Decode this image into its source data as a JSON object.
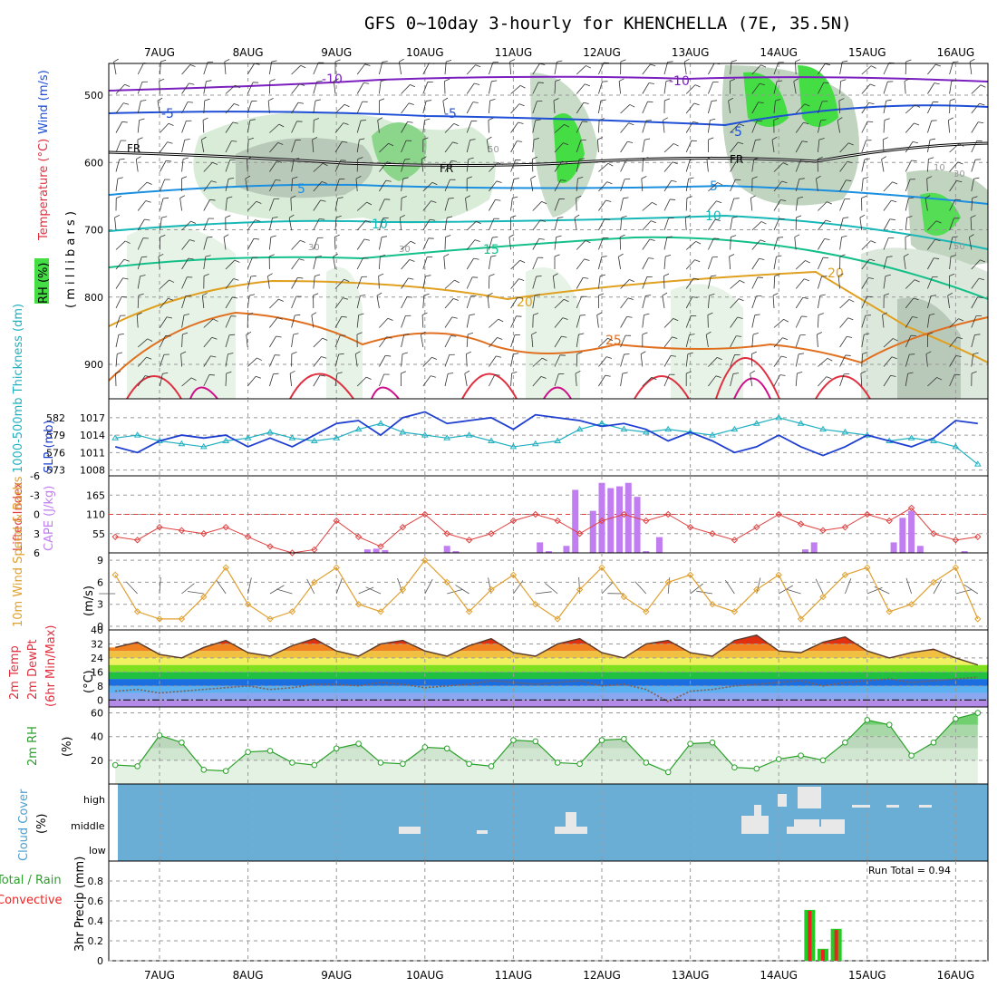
{
  "title": "GFS 0~10day 3-hourly for KHENCHELLA (7E, 35.5N)",
  "dates": [
    "7AUG",
    "8AUG",
    "9AUG",
    "10AUG",
    "11AUG",
    "12AUG",
    "13AUG",
    "14AUG",
    "15AUG",
    "16AUG"
  ],
  "colors": {
    "temp_cold": "#7b1fbf",
    "temp_neg5": "#1f4fd6",
    "freezing": "#000000",
    "temp_5": "#1b8fe0",
    "temp_10": "#18b8b8",
    "temp_15": "#14c08a",
    "temp_20": "#e0a020",
    "temp_25": "#e07020",
    "temp_30": "#e03040",
    "temp_35": "#d0108a",
    "slp": "#1f3fd0",
    "thickness": "#20b0c0",
    "cape": "#c07ef0",
    "lifted": "#e04040",
    "wind10": "#e0a030",
    "rh2m": "#2aa02a",
    "cloud": "#6aaed6",
    "cloud_cells": "#e8e8e8",
    "precip_total": "#22cc22",
    "precip_conv": "#ee2222"
  },
  "panels": {
    "upper_air": {
      "ylabel_rh": "RH (%)",
      "ylabel_temp": "Temperature (°C)",
      "ylabel_wind": "Wind (m/s)",
      "ylabel_mb": "( m i l l i b a r s )",
      "yticks": [
        "500",
        "600",
        "700",
        "800",
        "900"
      ],
      "contour_labels": [
        "-10",
        "-10",
        "-5",
        "-5",
        "-5",
        "FR",
        "FR",
        "FR",
        "5",
        "5",
        "10",
        "10",
        "15",
        "20",
        "20",
        "25",
        "30",
        "30",
        "50",
        "50",
        "30",
        "10"
      ]
    },
    "thickness_slp": {
      "ylabel_thick": "1000-500mb Thickness (dm)",
      "ylabel_slp": "SLP (mb)",
      "thick_ticks": [
        "582",
        "579",
        "576",
        "573"
      ],
      "slp_ticks": [
        "1017",
        "1014",
        "1011",
        "1008"
      ]
    },
    "stability": {
      "ylabel_li": "Lifted Index",
      "ylabel_cape": "CAPE (J/kg)",
      "li_ticks": [
        "-6",
        "-3",
        "0",
        "3",
        "6"
      ],
      "cape_ticks": [
        "165",
        "110",
        "55"
      ]
    },
    "wind10m": {
      "ylabel": "10m Wind Speed & Barbs",
      "units": "(m/s)",
      "ticks": [
        "9",
        "6",
        "3",
        "0"
      ]
    },
    "temp2m": {
      "ylabel1": "2m Temp",
      "ylabel2": "2m DewPt",
      "ylabel3": "(6hr Min/Max)",
      "units": "(°C)",
      "ticks": [
        "40",
        "32",
        "24",
        "16",
        "8",
        "0"
      ]
    },
    "rh2m": {
      "ylabel": "2m RH",
      "units": "(%)",
      "ticks": [
        "60",
        "40",
        "20"
      ]
    },
    "cloud": {
      "ylabel": "Cloud Cover",
      "units": "(%)",
      "levels": [
        "high",
        "middle",
        "low"
      ]
    },
    "precip": {
      "ylabel_total": "Total / Rain",
      "ylabel_conv": "Convective",
      "ylabel": "3hr Precip (mm)",
      "ticks": [
        "0.8",
        "0.6",
        "0.4",
        "0.2",
        "0"
      ],
      "run_total": "Run Total = 0.94"
    }
  },
  "chart_data": [
    {
      "type": "line",
      "name": "1000-500mb Thickness (dm) and SLP (mb)",
      "x_unit": "day offset from 7AUG 00Z",
      "x": [
        -0.5,
        -0.25,
        0,
        0.25,
        0.5,
        0.75,
        1,
        1.25,
        1.5,
        1.75,
        2,
        2.25,
        2.5,
        2.75,
        3,
        3.25,
        3.5,
        3.75,
        4,
        4.25,
        4.5,
        4.75,
        5,
        5.25,
        5.5,
        5.75,
        6,
        6.25,
        6.5,
        6.75,
        7,
        7.25,
        7.5,
        7.75,
        8,
        8.25,
        8.5,
        8.75,
        9,
        9.25
      ],
      "series": [
        {
          "name": "Thickness",
          "values": [
            578.5,
            579,
            578,
            577.5,
            577,
            578,
            578.5,
            579.5,
            578.5,
            578,
            578.5,
            580,
            581,
            579.5,
            579,
            578.5,
            579,
            578,
            577,
            577.5,
            578,
            580,
            581,
            580,
            579.5,
            580,
            579.5,
            579,
            580,
            581,
            582,
            581,
            580,
            579.5,
            579,
            578,
            578.5,
            578,
            577,
            574
          ]
        },
        {
          "name": "SLP",
          "values": [
            1012,
            1011,
            1013,
            1014,
            1013.5,
            1014,
            1012,
            1013.5,
            1012,
            1014,
            1016,
            1016.5,
            1014,
            1017,
            1018,
            1016,
            1016.5,
            1017,
            1015,
            1017.5,
            1017,
            1016.5,
            1015.5,
            1016,
            1015,
            1013,
            1014.5,
            1013,
            1011,
            1012,
            1014,
            1012,
            1010.5,
            1012,
            1014,
            1013,
            1012,
            1013.5,
            1016.5,
            1016
          ]
        }
      ],
      "ylim_thick": [
        572,
        584
      ],
      "ylim_slp": [
        1007,
        1019
      ]
    },
    {
      "type": "bar",
      "name": "CAPE (J/kg) and Lifted Index",
      "x": [
        2.35,
        2.45,
        2.55,
        3.25,
        3.35,
        4.3,
        4.4,
        4.6,
        4.7,
        4.9,
        5,
        5.1,
        5.2,
        5.3,
        5.4,
        5.5,
        5.65,
        7.3,
        7.4,
        8.3,
        8.4,
        8.5,
        8.6,
        9.1
      ],
      "values": [
        10,
        12,
        8,
        20,
        5,
        30,
        5,
        20,
        180,
        120,
        200,
        185,
        190,
        200,
        160,
        5,
        45,
        10,
        30,
        30,
        100,
        120,
        20,
        5
      ],
      "lifted_index_x": [
        -0.5,
        -0.25,
        0,
        0.25,
        0.5,
        0.75,
        1,
        1.25,
        1.5,
        1.75,
        2,
        2.25,
        2.5,
        2.75,
        3,
        3.25,
        3.5,
        3.75,
        4,
        4.25,
        4.5,
        4.75,
        5,
        5.25,
        5.5,
        5.75,
        6,
        6.25,
        6.5,
        6.75,
        7,
        7.25,
        7.5,
        7.75,
        8,
        8.25,
        8.5,
        8.75,
        9,
        9.25
      ],
      "lifted_index": [
        3.5,
        4,
        2,
        2.5,
        3,
        2,
        3.5,
        5,
        6,
        5.5,
        1,
        3.5,
        5,
        2,
        0,
        3,
        4,
        3,
        1,
        0,
        1,
        3,
        1,
        0,
        1,
        0,
        2,
        3,
        4,
        2,
        0,
        1.5,
        2.5,
        2,
        0,
        1,
        -1,
        3,
        4,
        3.5
      ],
      "ylim_cape": [
        0,
        220
      ],
      "ylim_li": [
        6,
        -6
      ]
    },
    {
      "type": "line",
      "name": "10m Wind Speed (m/s)",
      "x": [
        -0.5,
        -0.25,
        0,
        0.25,
        0.5,
        0.75,
        1,
        1.25,
        1.5,
        1.75,
        2,
        2.25,
        2.5,
        2.75,
        3,
        3.25,
        3.5,
        3.75,
        4,
        4.25,
        4.5,
        4.75,
        5,
        5.25,
        5.5,
        5.75,
        6,
        6.25,
        6.5,
        6.75,
        7,
        7.25,
        7.5,
        7.75,
        8,
        8.25,
        8.5,
        8.75,
        9,
        9.25
      ],
      "values": [
        7,
        2,
        1,
        1,
        4,
        8,
        3,
        1,
        2,
        6,
        8,
        3,
        2,
        5,
        9,
        6,
        2,
        5,
        7,
        3,
        1,
        5,
        8,
        4,
        2,
        6,
        7,
        3,
        2,
        5,
        7,
        1,
        4,
        7,
        8,
        2,
        3,
        6,
        8,
        1
      ],
      "ylim": [
        0,
        10
      ]
    },
    {
      "type": "line",
      "name": "2m Temp and DewPt (°C)",
      "x": [
        -0.5,
        -0.25,
        0,
        0.25,
        0.5,
        0.75,
        1,
        1.25,
        1.5,
        1.75,
        2,
        2.25,
        2.5,
        2.75,
        3,
        3.25,
        3.5,
        3.75,
        4,
        4.25,
        4.5,
        4.75,
        5,
        5.25,
        5.5,
        5.75,
        6,
        6.25,
        6.5,
        6.75,
        7,
        7.25,
        7.5,
        7.75,
        8,
        8.25,
        8.5,
        8.75,
        9,
        9.25
      ],
      "series": [
        {
          "name": "Temp",
          "values": [
            30,
            33,
            26,
            24,
            30,
            34,
            27,
            25,
            31,
            35,
            28,
            25,
            32,
            34,
            28,
            25,
            31,
            35,
            27,
            25,
            32,
            35,
            27,
            24,
            32,
            34,
            27,
            25,
            34,
            37,
            28,
            27,
            33,
            36,
            28,
            24,
            27,
            29,
            24,
            20
          ]
        },
        {
          "name": "DewPt",
          "values": [
            5,
            6,
            4,
            5,
            6,
            7,
            8,
            6,
            7,
            9,
            9,
            8,
            10,
            9,
            7,
            8,
            9,
            11,
            10,
            9,
            10,
            11,
            8,
            9,
            6,
            -1,
            5,
            6,
            8,
            9,
            10,
            11,
            8,
            10,
            11,
            12,
            10,
            11,
            12,
            13
          ]
        }
      ],
      "ylim": [
        -4,
        40
      ]
    },
    {
      "type": "area",
      "name": "2m RH (%)",
      "x": [
        -0.5,
        -0.25,
        0,
        0.25,
        0.5,
        0.75,
        1,
        1.25,
        1.5,
        1.75,
        2,
        2.25,
        2.5,
        2.75,
        3,
        3.25,
        3.5,
        3.75,
        4,
        4.25,
        4.5,
        4.75,
        5,
        5.25,
        5.5,
        5.75,
        6,
        6.25,
        6.5,
        6.75,
        7,
        7.25,
        7.5,
        7.75,
        8,
        8.25,
        8.5,
        8.75,
        9,
        9.25
      ],
      "values": [
        16,
        15,
        41,
        35,
        12,
        11,
        27,
        28,
        18,
        16,
        30,
        34,
        18,
        17,
        31,
        30,
        17,
        15,
        37,
        36,
        18,
        17,
        37,
        38,
        18,
        10,
        34,
        35,
        14,
        13,
        21,
        24,
        20,
        35,
        54,
        50,
        24,
        35,
        55,
        60
      ],
      "ylim": [
        0,
        65
      ]
    },
    {
      "type": "bar",
      "name": "3hr Precip (mm)",
      "x": [
        7.35,
        7.5,
        7.65
      ],
      "series": [
        {
          "name": "Total / Rain",
          "values": [
            0.51,
            0.12,
            0.32
          ]
        },
        {
          "name": "Convective",
          "values": [
            0.5,
            0.11,
            0.31
          ]
        }
      ],
      "ylim": [
        0,
        1.0
      ]
    }
  ]
}
